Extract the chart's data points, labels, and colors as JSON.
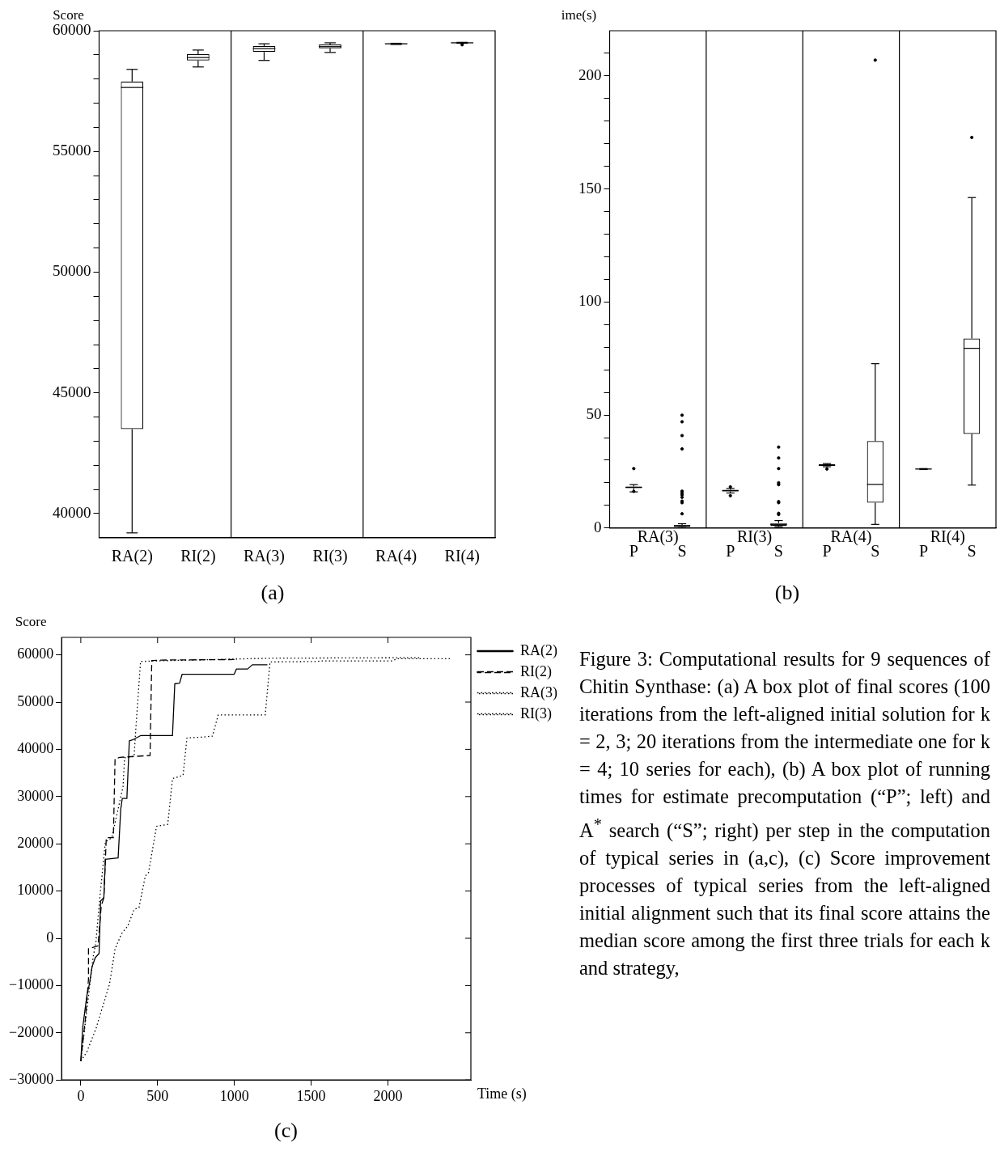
{
  "chart_data": [
    {
      "type": "box",
      "title": "(a)",
      "ylabel": "Score",
      "categories": [
        "RA(2)",
        "RI(2)",
        "RA(3)",
        "RI(3)",
        "RA(4)",
        "RI(4)"
      ],
      "color": "#000000",
      "boxes": [
        {
          "low": 39200,
          "q1": 43500,
          "median": 57650,
          "q3": 57900,
          "high": 58400
        },
        {
          "low": 58500,
          "q1": 58770,
          "median": 58890,
          "q3": 59030,
          "high": 59200
        },
        {
          "low": 58770,
          "q1": 59120,
          "median": 59260,
          "q3": 59360,
          "high": 59460
        },
        {
          "low": 59100,
          "q1": 59270,
          "median": 59340,
          "q3": 59430,
          "high": 59500
        },
        {
          "low": 59430,
          "q1": 59450,
          "median": 59460,
          "q3": 59470,
          "high": 59480
        },
        {
          "low": 59480,
          "q1": 59490,
          "median": 59500,
          "q3": 59510,
          "high": 59520,
          "outliers": [
            59420
          ]
        }
      ],
      "ylim": [
        39000,
        60000
      ],
      "yticks": [
        40000,
        {
          "value": 41000,
          "label": null
        },
        {
          "value": 42000,
          "label": null
        },
        {
          "value": 43000,
          "label": null
        },
        {
          "value": 44000,
          "label": null
        },
        45000,
        {
          "value": 46000,
          "label": null
        },
        {
          "value": 47000,
          "label": null
        },
        {
          "value": 48000,
          "label": null
        },
        {
          "value": 49000,
          "label": null
        },
        50000,
        {
          "value": 51000,
          "label": null
        },
        {
          "value": 52000,
          "label": null
        },
        {
          "value": 53000,
          "label": null
        },
        {
          "value": 54000,
          "label": null
        },
        55000,
        {
          "value": 56000,
          "label": null
        },
        {
          "value": 57000,
          "label": null
        },
        {
          "value": 58000,
          "label": null
        },
        {
          "value": 59000,
          "label": null
        },
        60000
      ],
      "grid": false,
      "legend": false
    },
    {
      "type": "box",
      "title": "(b)",
      "ylabel": "ime(s)",
      "categories": [
        "P",
        "S",
        "P",
        "S",
        "P",
        "S",
        "P",
        "S"
      ],
      "color": "#000000",
      "annotations": [
        "RA(3)",
        "RI(3)",
        "RA(4)",
        "RI(4)"
      ],
      "boxes": [
        {
          "low": 16,
          "q1": 17.6,
          "median": 18,
          "q3": 18.4,
          "high": 19.2,
          "outliers": [
            26.3,
            16.2
          ]
        },
        {
          "low": 0.2,
          "q1": 0.5,
          "median": 1,
          "q3": 1.3,
          "high": 1.9,
          "outliers": [
            49.9,
            47,
            40.9,
            35,
            16.3,
            15.5,
            14.7,
            13.6,
            11.9,
            11.2,
            6.3
          ]
        },
        {
          "low": 15.5,
          "q1": 16.2,
          "median": 16.5,
          "q3": 16.9,
          "high": 17.5,
          "outliers": [
            14.3,
            18.2
          ]
        },
        {
          "low": 0.6,
          "q1": 0.95,
          "median": 1.6,
          "q3": 2.2,
          "high": 3.3,
          "outliers": [
            35.8,
            31,
            26.3,
            20,
            19.2,
            11.7,
            11.2,
            6.5,
            6
          ]
        },
        {
          "low": 27.1,
          "q1": 27.4,
          "median": 27.8,
          "q3": 28.2,
          "high": 28.5,
          "outliers": [
            26.1
          ]
        },
        {
          "low": 1.6,
          "q1": 11.2,
          "median": 19.3,
          "q3": 38.5,
          "high": 72.7,
          "outliers": [
            207
          ]
        },
        {
          "low": 25.9,
          "q1": 26,
          "median": 26.1,
          "q3": 26.2,
          "high": 26.3
        },
        {
          "low": 19,
          "q1": 41.6,
          "median": 79.5,
          "q3": 83.8,
          "high": 146.2,
          "outliers": [
            172.8
          ]
        }
      ],
      "ylim": [
        0,
        220
      ],
      "yticks": [
        0,
        {
          "value": 10,
          "label": null
        },
        {
          "value": 20,
          "label": null
        },
        {
          "value": 30,
          "label": null
        },
        {
          "value": 40,
          "label": null
        },
        50,
        {
          "value": 60,
          "label": null
        },
        {
          "value": 70,
          "label": null
        },
        {
          "value": 80,
          "label": null
        },
        {
          "value": 90,
          "label": null
        },
        100,
        {
          "value": 110,
          "label": null
        },
        {
          "value": 120,
          "label": null
        },
        {
          "value": 130,
          "label": null
        },
        {
          "value": 140,
          "label": null
        },
        150,
        {
          "value": 160,
          "label": null
        },
        {
          "value": 170,
          "label": null
        },
        {
          "value": 180,
          "label": null
        },
        {
          "value": 190,
          "label": null
        },
        200,
        {
          "value": 210,
          "label": null
        }
      ],
      "grid": false,
      "legend": false
    },
    {
      "type": "line",
      "title": "(c)",
      "ylabel": "Score",
      "xlabel": "Time (s)",
      "legend": "right",
      "grid": false,
      "marker": "none",
      "xlim": [
        -125,
        2540
      ],
      "xticks": [
        0,
        500,
        1000,
        1500,
        2000
      ],
      "ylim": [
        -30000,
        63700
      ],
      "yticks": [
        {
          "value": -30000,
          "label": "−30000"
        },
        {
          "value": -20000,
          "label": "−20000"
        },
        {
          "value": -10000,
          "label": "−10000"
        },
        0,
        10000,
        20000,
        30000,
        40000,
        50000,
        60000
      ],
      "series": [
        {
          "name": "RA(2)",
          "color": "#000000",
          "line_style": "solid",
          "x": [
            0,
            12,
            40,
            56,
            73,
            94,
            119,
            129,
            150,
            160,
            243,
            260,
            270,
            300,
            316,
            337,
            389,
            597,
            612,
            643,
            660,
            999,
            1013,
            1086,
            1117,
            1215
          ],
          "values": [
            -26000,
            -19000,
            -12000,
            -9700,
            -6100,
            -4100,
            -3200,
            7900,
            8600,
            16700,
            17000,
            27300,
            29600,
            29600,
            41800,
            42000,
            42900,
            42900,
            53900,
            54000,
            55900,
            55900,
            57000,
            57000,
            57900,
            57900
          ]
        },
        {
          "name": "RI(2)",
          "color": "#000000",
          "line_style": "dashed",
          "x": [
            0,
            30,
            50,
            50,
            112,
            133,
            150,
            166,
            212,
            223,
            254,
            451,
            462,
            524,
            1000
          ],
          "values": [
            -26000,
            -17000,
            -8700,
            -2200,
            -1600,
            6800,
            8600,
            21300,
            21300,
            38000,
            38300,
            38700,
            58800,
            58900,
            59000
          ]
        },
        {
          "name": "RA(3)",
          "color": "#000000",
          "line_style": "dotted",
          "x": [
            0,
            40,
            80,
            98,
            125,
            160,
            202,
            275,
            285,
            347,
            358,
            389,
            462,
            1253,
            2210
          ],
          "values": [
            -26000,
            -15000,
            -4000,
            -900,
            9000,
            20400,
            21300,
            32100,
            38200,
            38500,
            44200,
            58600,
            58700,
            59300,
            59400
          ]
        },
        {
          "name": "RI(3)",
          "color": "#000000",
          "line_style": "dotted",
          "x": [
            0,
            40,
            100,
            187,
            223,
            264,
            306,
            347,
            379,
            420,
            441,
            493,
            566,
            597,
            666,
            691,
            795,
            857,
            895,
            1201,
            1232,
            1544,
            1554,
            2022,
            2064,
            2418
          ],
          "values": [
            -26000,
            -24000,
            -19000,
            -9700,
            -2300,
            900,
            2600,
            6100,
            6500,
            13200,
            13900,
            23700,
            24100,
            33800,
            34500,
            42400,
            42600,
            42800,
            47300,
            47300,
            58500,
            58600,
            58700,
            58700,
            59200,
            59200
          ]
        }
      ]
    },
    {
      "type": "other",
      "annotations": [
        "Figure 3: Computational results for 9 sequences of Chitin Synthase: (a) A box plot of final scores (100 iterations from the left-aligned initial solution for k = 2, 3; 20 iterations from the intermediate one for k = 4; 10 series for each), (b) A box plot of running times for estimate precomputation (“P”; left) and A$^{*}$ search (“S”; right) per step in the computation of typical series in (a,c), (c) Score improvement processes of typical series from the left-aligned initial alignment such that its final score attains the median score among the first three trials for each k and strategy,"
      ]
    }
  ]
}
